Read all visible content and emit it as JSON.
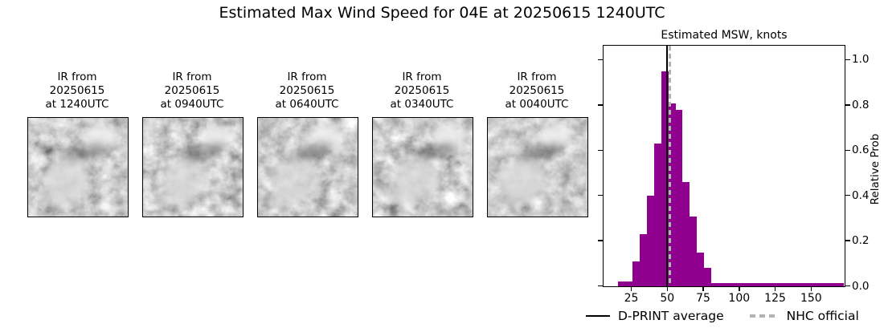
{
  "figure_title": "Estimated Max Wind Speed for 04E at 20250615 1240UTC",
  "panels": [
    {
      "l1": "IR from",
      "l2": "20250615",
      "l3": "at 1240UTC"
    },
    {
      "l1": "IR from",
      "l2": "20250615",
      "l3": "at 0940UTC"
    },
    {
      "l1": "IR from",
      "l2": "20250615",
      "l3": "at 0640UTC"
    },
    {
      "l1": "IR from",
      "l2": "20250615",
      "l3": "at 0340UTC"
    },
    {
      "l1": "IR from",
      "l2": "20250615",
      "l3": "at 0040UTC"
    }
  ],
  "legend": {
    "dprint": "D-PRINT average",
    "nhc": "NHC official"
  },
  "colors": {
    "bar": "#8f008f",
    "dprint_line": "#000000",
    "nhc_line": "#b3b3b3"
  },
  "chart_data": {
    "type": "bar",
    "title": "Estimated MSW, knots",
    "xlabel": "",
    "ylabel": "Relative Prob",
    "xlim": [
      6,
      173
    ],
    "ylim": [
      0,
      1.06
    ],
    "x_ticks": [
      25,
      50,
      75,
      100,
      125,
      150
    ],
    "y_ticks": [
      "0.0",
      "0.2",
      "0.4",
      "0.6",
      "0.8",
      "1.0"
    ],
    "grid": false,
    "legend_position": "bottom",
    "bins": [
      {
        "x0": 16,
        "x1": 21,
        "p": 0.02
      },
      {
        "x0": 21,
        "x1": 26,
        "p": 0.02
      },
      {
        "x0": 26,
        "x1": 31,
        "p": 0.11
      },
      {
        "x0": 31,
        "x1": 36,
        "p": 0.23
      },
      {
        "x0": 36,
        "x1": 41,
        "p": 0.4
      },
      {
        "x0": 41,
        "x1": 46,
        "p": 0.63
      },
      {
        "x0": 46,
        "x1": 51,
        "p": 0.95
      },
      {
        "x0": 51,
        "x1": 56,
        "p": 0.81
      },
      {
        "x0": 56,
        "x1": 61,
        "p": 0.78
      },
      {
        "x0": 61,
        "x1": 66,
        "p": 0.46
      },
      {
        "x0": 66,
        "x1": 71,
        "p": 0.31
      },
      {
        "x0": 71,
        "x1": 76,
        "p": 0.15
      },
      {
        "x0": 76,
        "x1": 81,
        "p": 0.08
      },
      {
        "x0": 81,
        "x1": 173,
        "p": 0.013
      }
    ],
    "lines": [
      {
        "name": "D-PRINT average",
        "value": 50,
        "style": "solid"
      },
      {
        "name": "NHC official",
        "value": 52,
        "style": "dashed"
      }
    ]
  }
}
